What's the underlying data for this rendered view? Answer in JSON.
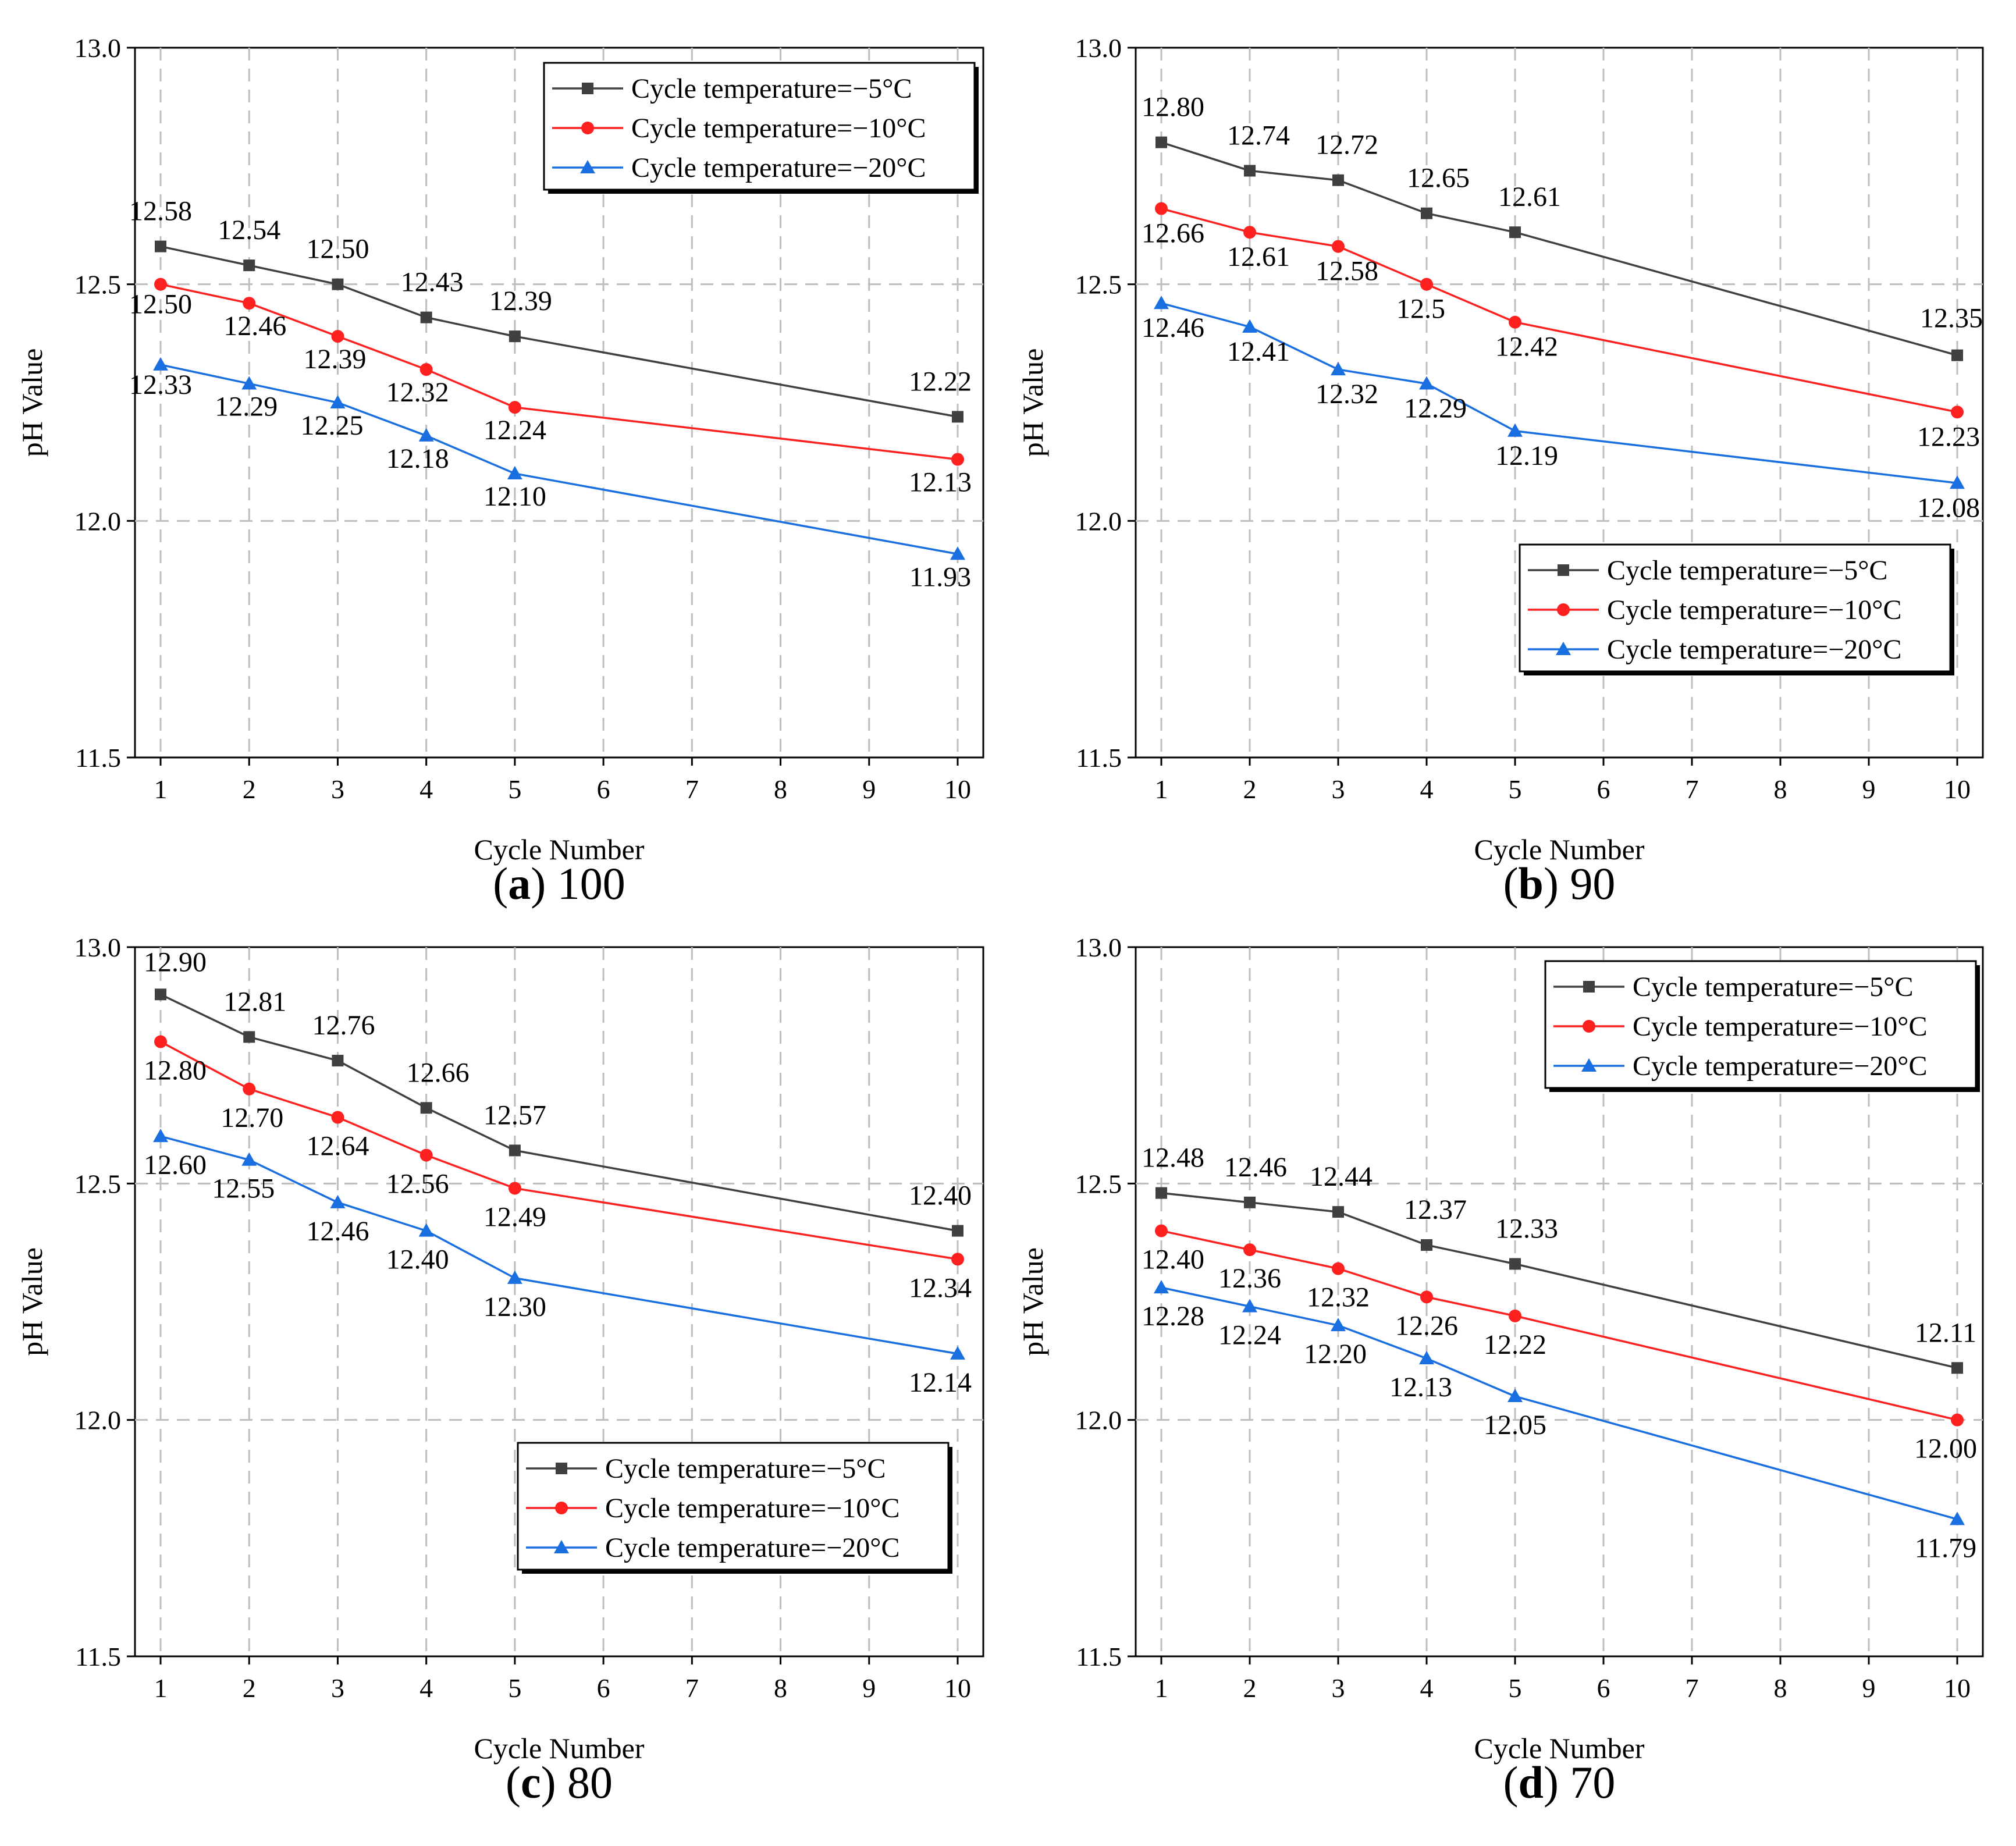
{
  "figure": {
    "x_ticks": [
      1,
      2,
      3,
      4,
      5,
      6,
      7,
      8,
      9,
      10
    ],
    "y_ticks": [
      "11.5",
      "12.0",
      "12.5",
      "13.0"
    ],
    "xlabel": "Cycle Number",
    "ylabel": "pH Value",
    "series_names": [
      "Cycle temperature=−5°C",
      "Cycle temperature=−10°C",
      "Cycle temperature=−20°C"
    ],
    "series_colors": [
      "#404040",
      "#ff2020",
      "#1a6fe0"
    ],
    "series_markers": [
      "square",
      "circle",
      "triangle"
    ]
  },
  "chart_data": [
    {
      "type": "line",
      "panel": "a",
      "caption_letter": "a",
      "caption_value": "100",
      "xlabel": "Cycle Number",
      "ylabel": "pH Value",
      "xlim": [
        1,
        10
      ],
      "ylim": [
        11.5,
        13.0
      ],
      "grid": true,
      "legend_position": "top-right",
      "x": [
        1,
        2,
        3,
        4,
        5,
        10
      ],
      "series": [
        {
          "name": "Cycle temperature=−5°C",
          "values": [
            12.58,
            12.54,
            12.5,
            12.43,
            12.39,
            12.22
          ],
          "labels": [
            "12.58",
            "12.54",
            "12.50",
            "12.43",
            "12.39",
            "12.22"
          ]
        },
        {
          "name": "Cycle temperature=−10°C",
          "values": [
            12.5,
            12.46,
            12.39,
            12.32,
            12.24,
            12.13
          ],
          "labels": [
            "12.50",
            "12.46",
            "12.39",
            "12.32",
            "12.24",
            "12.13"
          ]
        },
        {
          "name": "Cycle temperature=−20°C",
          "values": [
            12.33,
            12.29,
            12.25,
            12.18,
            12.1,
            11.93
          ],
          "labels": [
            "12.33",
            "12.29",
            "12.25",
            "12.18",
            "12.10",
            "11.93"
          ]
        }
      ]
    },
    {
      "type": "line",
      "panel": "b",
      "caption_letter": "b",
      "caption_value": "90",
      "xlabel": "Cycle Number",
      "ylabel": "pH Value",
      "xlim": [
        1,
        10
      ],
      "ylim": [
        11.5,
        13.0
      ],
      "grid": true,
      "legend_position": "bottom-right",
      "x": [
        1,
        2,
        3,
        4,
        5,
        10
      ],
      "series": [
        {
          "name": "Cycle temperature=−5°C",
          "values": [
            12.8,
            12.74,
            12.72,
            12.65,
            12.61,
            12.35
          ],
          "labels": [
            "12.80",
            "12.74",
            "12.72",
            "12.65",
            "12.61",
            "12.35"
          ]
        },
        {
          "name": "Cycle temperature=−10°C",
          "values": [
            12.66,
            12.61,
            12.58,
            12.5,
            12.42,
            12.23
          ],
          "labels": [
            "12.66",
            "12.61",
            "12.58",
            "12.5",
            "12.42",
            "12.23"
          ]
        },
        {
          "name": "Cycle temperature=−20°C",
          "values": [
            12.46,
            12.41,
            12.32,
            12.29,
            12.19,
            12.08
          ],
          "labels": [
            "12.46",
            "12.41",
            "12.32",
            "12.29",
            "12.19",
            "12.08"
          ]
        }
      ]
    },
    {
      "type": "line",
      "panel": "c",
      "caption_letter": "c",
      "caption_value": "80",
      "xlabel": "Cycle Number",
      "ylabel": "pH Value",
      "xlim": [
        1,
        10
      ],
      "ylim": [
        11.5,
        13.0
      ],
      "grid": true,
      "legend_position": "bottom-right",
      "x": [
        1,
        2,
        3,
        4,
        5,
        10
      ],
      "series": [
        {
          "name": "Cycle temperature=−5°C",
          "values": [
            12.9,
            12.81,
            12.76,
            12.66,
            12.57,
            12.4
          ],
          "labels": [
            "12.90",
            "12.81",
            "12.76",
            "12.66",
            "12.57",
            "12.40"
          ]
        },
        {
          "name": "Cycle temperature=−10°C",
          "values": [
            12.8,
            12.7,
            12.64,
            12.56,
            12.49,
            12.34
          ],
          "labels": [
            "12.80",
            "12.70",
            "12.64",
            "12.56",
            "12.49",
            "12.34"
          ]
        },
        {
          "name": "Cycle temperature=−20°C",
          "values": [
            12.6,
            12.55,
            12.46,
            12.4,
            12.3,
            12.14
          ],
          "labels": [
            "12.60",
            "12.55",
            "12.46",
            "12.40",
            "12.30",
            "12.14"
          ]
        }
      ]
    },
    {
      "type": "line",
      "panel": "d",
      "caption_letter": "d",
      "caption_value": "70",
      "xlabel": "Cycle Number",
      "ylabel": "pH Value",
      "xlim": [
        1,
        10
      ],
      "ylim": [
        11.5,
        13.0
      ],
      "grid": true,
      "legend_position": "top-right",
      "x": [
        1,
        2,
        3,
        4,
        5,
        10
      ],
      "series": [
        {
          "name": "Cycle temperature=−5°C",
          "values": [
            12.48,
            12.46,
            12.44,
            12.37,
            12.33,
            12.11
          ],
          "labels": [
            "12.48",
            "12.46",
            "12.44",
            "12.37",
            "12.33",
            "12.11"
          ]
        },
        {
          "name": "Cycle temperature=−10°C",
          "values": [
            12.4,
            12.36,
            12.32,
            12.26,
            12.22,
            12.0
          ],
          "labels": [
            "12.40",
            "12.36",
            "12.32",
            "12.26",
            "12.22",
            "12.00"
          ]
        },
        {
          "name": "Cycle temperature=−20°C",
          "values": [
            12.28,
            12.24,
            12.2,
            12.13,
            12.05,
            11.79
          ],
          "labels": [
            "12.28",
            "12.24",
            "12.20",
            "12.13",
            "12.05",
            "11.79"
          ]
        }
      ]
    }
  ]
}
